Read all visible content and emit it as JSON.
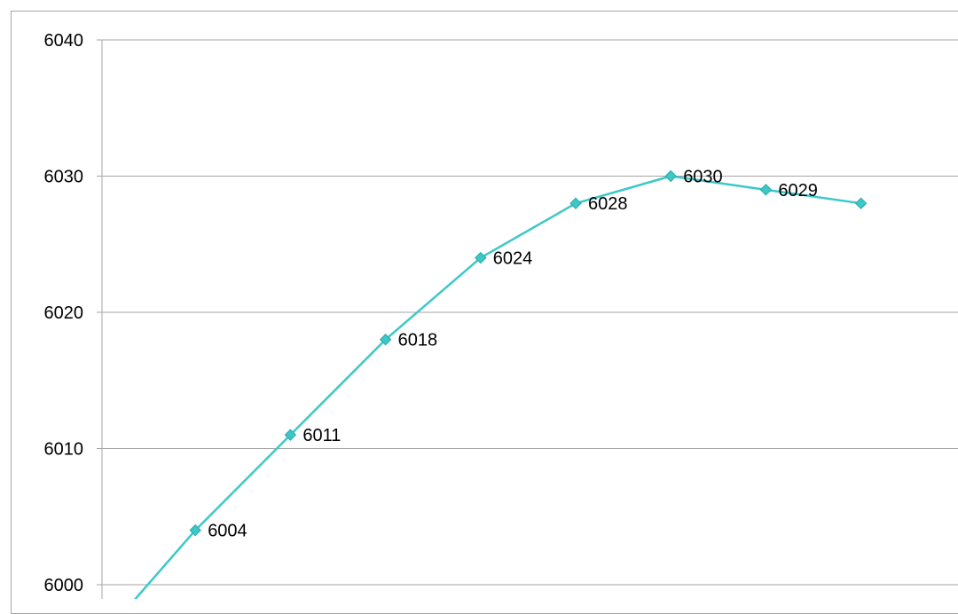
{
  "chart_data": {
    "type": "line",
    "title": "",
    "xlabel": "",
    "ylabel": "",
    "ylim": [
      6000,
      6040
    ],
    "yticks": [
      "6000",
      "6010",
      "6020",
      "6030",
      "6040"
    ],
    "grid": true,
    "legend": "none",
    "x": [
      1,
      2,
      3,
      4,
      5,
      6,
      7,
      8,
      9
    ],
    "series": [
      {
        "values": [
          5996,
          6004,
          6011,
          6018,
          6024,
          6028,
          6030,
          6029,
          6028
        ],
        "data_labels": [
          "",
          "6004",
          "6011",
          "6018",
          "6024",
          "6028",
          "6030",
          "6029",
          ""
        ],
        "color": "#3cc8c8",
        "marker": "diamond"
      }
    ]
  }
}
